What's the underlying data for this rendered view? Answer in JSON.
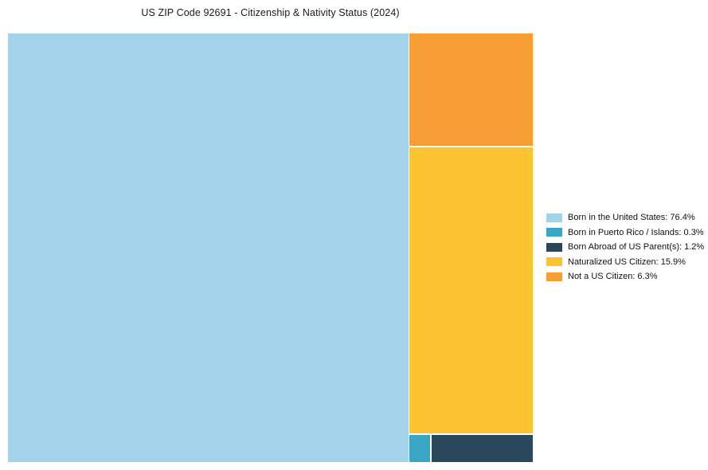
{
  "chart_data": {
    "type": "treemap",
    "title": "US ZIP Code 92691 - Citizenship & Nativity Status (2024)",
    "unit": "%",
    "legend_position": "right",
    "segments": [
      {
        "label": "Born in the United States",
        "value": 76.4,
        "color": "#A2D3E8"
      },
      {
        "label": "Born in Puerto Rico / Islands",
        "value": 0.3,
        "color": "#39A6C6"
      },
      {
        "label": "Born Abroad of US Parent(s)",
        "value": 1.2,
        "color": "#29485C"
      },
      {
        "label": "Naturalized US Citizen",
        "value": 15.9,
        "color": "#FDC431"
      },
      {
        "label": "Not a US Citizen",
        "value": 6.3,
        "color": "#F99D35"
      }
    ]
  },
  "legend": {
    "items": [
      {
        "text": "Born in the United States: 76.4%"
      },
      {
        "text": "Born in Puerto Rico / Islands: 0.3%"
      },
      {
        "text": "Born Abroad of US Parent(s): 1.2%"
      },
      {
        "text": "Naturalized US Citizen: 15.9%"
      },
      {
        "text": "Not a US Citizen: 6.3%"
      }
    ]
  }
}
